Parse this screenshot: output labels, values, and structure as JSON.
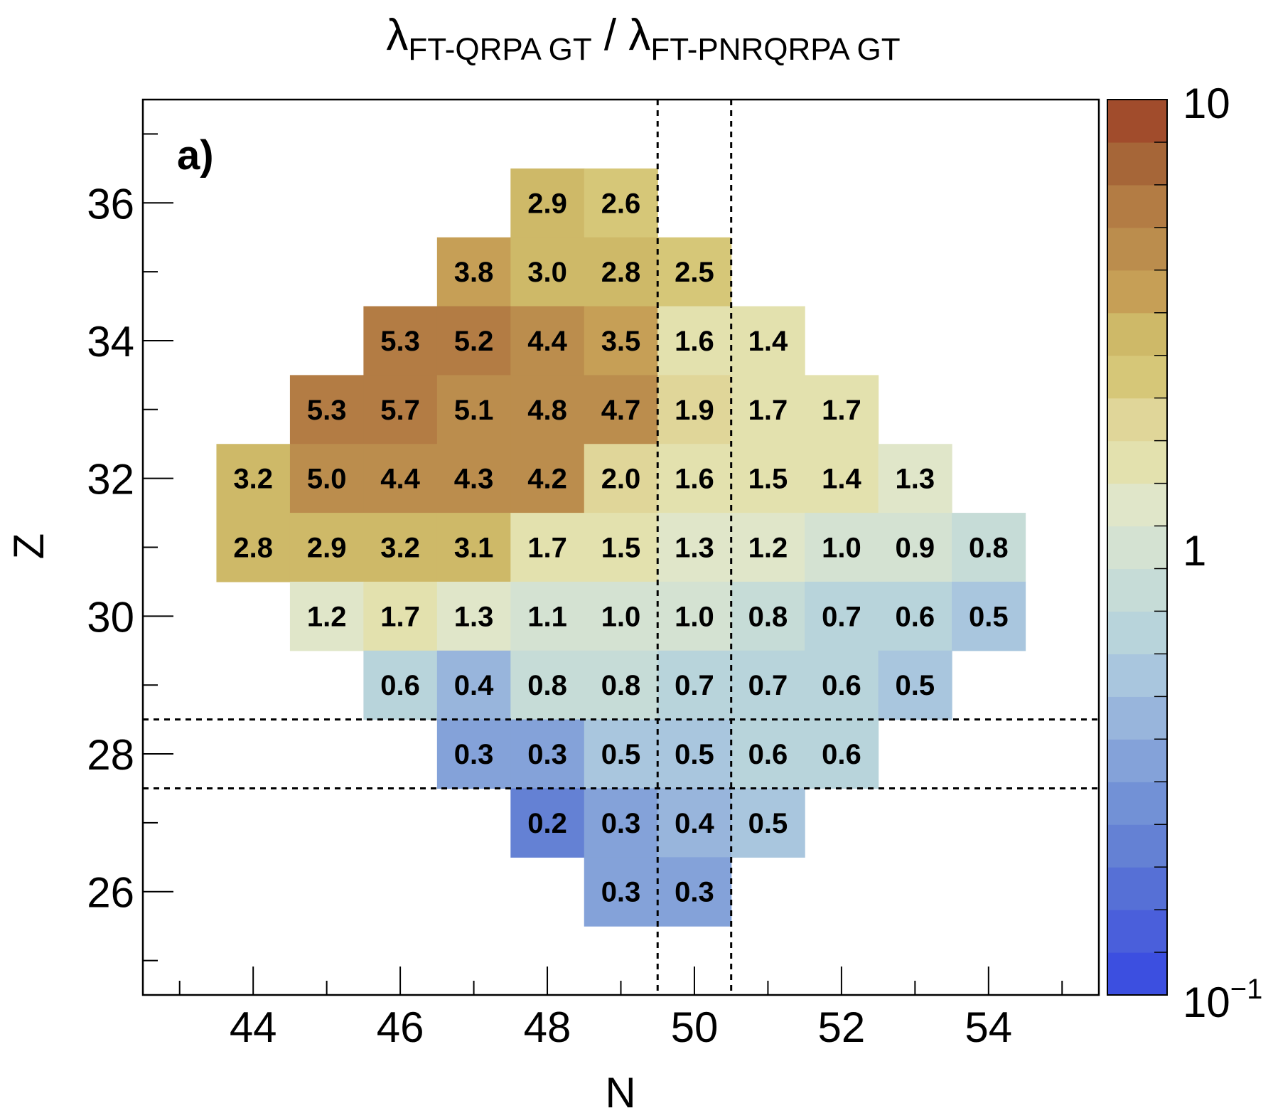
{
  "chart_data": {
    "type": "heatmap",
    "title_main": "λ",
    "title_sub1": "FT-QRPA GT",
    "title_sep": " / ",
    "title_main2": "λ",
    "title_sub2": "FT-PNRQRPA GT",
    "xlabel": "N",
    "ylabel": "Z",
    "panel_label": "a)",
    "xlim": [
      42.5,
      55.5
    ],
    "ylim": [
      24.5,
      37.5
    ],
    "x_ticks": [
      44,
      46,
      48,
      50,
      52,
      54
    ],
    "x_tick_labels": [
      "44",
      "46",
      "48",
      "50",
      "52",
      "54"
    ],
    "y_ticks": [
      26,
      28,
      30,
      32,
      34,
      36
    ],
    "y_tick_labels": [
      "26",
      "28",
      "30",
      "32",
      "34",
      "36"
    ],
    "color_scale": "log",
    "zlim": [
      0.1,
      10
    ],
    "colorbar_labels": {
      "top": "10",
      "mid": "1",
      "bottom_base": "10",
      "bottom_exp": "−1"
    },
    "dashed_lines": {
      "vertical_N": [
        49.5,
        50.5
      ],
      "horizontal_Z": [
        27.5,
        28.5
      ]
    },
    "cells": [
      {
        "N": 48,
        "Z": 36,
        "v": 2.9,
        "label": "2.9"
      },
      {
        "N": 49,
        "Z": 36,
        "v": 2.6,
        "label": "2.6"
      },
      {
        "N": 47,
        "Z": 35,
        "v": 3.8,
        "label": "3.8"
      },
      {
        "N": 48,
        "Z": 35,
        "v": 3.0,
        "label": "3.0"
      },
      {
        "N": 49,
        "Z": 35,
        "v": 2.8,
        "label": "2.8"
      },
      {
        "N": 50,
        "Z": 35,
        "v": 2.5,
        "label": "2.5"
      },
      {
        "N": 46,
        "Z": 34,
        "v": 5.3,
        "label": "5.3"
      },
      {
        "N": 47,
        "Z": 34,
        "v": 5.2,
        "label": "5.2"
      },
      {
        "N": 48,
        "Z": 34,
        "v": 4.4,
        "label": "4.4"
      },
      {
        "N": 49,
        "Z": 34,
        "v": 3.5,
        "label": "3.5"
      },
      {
        "N": 50,
        "Z": 34,
        "v": 1.6,
        "label": "1.6"
      },
      {
        "N": 51,
        "Z": 34,
        "v": 1.4,
        "label": "1.4"
      },
      {
        "N": 45,
        "Z": 33,
        "v": 5.3,
        "label": "5.3"
      },
      {
        "N": 46,
        "Z": 33,
        "v": 5.7,
        "label": "5.7"
      },
      {
        "N": 47,
        "Z": 33,
        "v": 5.1,
        "label": "5.1"
      },
      {
        "N": 48,
        "Z": 33,
        "v": 4.8,
        "label": "4.8"
      },
      {
        "N": 49,
        "Z": 33,
        "v": 4.7,
        "label": "4.7"
      },
      {
        "N": 50,
        "Z": 33,
        "v": 1.9,
        "label": "1.9"
      },
      {
        "N": 51,
        "Z": 33,
        "v": 1.7,
        "label": "1.7"
      },
      {
        "N": 52,
        "Z": 33,
        "v": 1.7,
        "label": "1.7"
      },
      {
        "N": 44,
        "Z": 32,
        "v": 3.2,
        "label": "3.2"
      },
      {
        "N": 45,
        "Z": 32,
        "v": 5.0,
        "label": "5.0"
      },
      {
        "N": 46,
        "Z": 32,
        "v": 4.4,
        "label": "4.4"
      },
      {
        "N": 47,
        "Z": 32,
        "v": 4.3,
        "label": "4.3"
      },
      {
        "N": 48,
        "Z": 32,
        "v": 4.2,
        "label": "4.2"
      },
      {
        "N": 49,
        "Z": 32,
        "v": 2.0,
        "label": "2.0"
      },
      {
        "N": 50,
        "Z": 32,
        "v": 1.6,
        "label": "1.6"
      },
      {
        "N": 51,
        "Z": 32,
        "v": 1.5,
        "label": "1.5"
      },
      {
        "N": 52,
        "Z": 32,
        "v": 1.4,
        "label": "1.4"
      },
      {
        "N": 53,
        "Z": 32,
        "v": 1.3,
        "label": "1.3"
      },
      {
        "N": 44,
        "Z": 31,
        "v": 2.8,
        "label": "2.8"
      },
      {
        "N": 45,
        "Z": 31,
        "v": 2.9,
        "label": "2.9"
      },
      {
        "N": 46,
        "Z": 31,
        "v": 3.2,
        "label": "3.2"
      },
      {
        "N": 47,
        "Z": 31,
        "v": 3.1,
        "label": "3.1"
      },
      {
        "N": 48,
        "Z": 31,
        "v": 1.7,
        "label": "1.7"
      },
      {
        "N": 49,
        "Z": 31,
        "v": 1.5,
        "label": "1.5"
      },
      {
        "N": 50,
        "Z": 31,
        "v": 1.3,
        "label": "1.3"
      },
      {
        "N": 51,
        "Z": 31,
        "v": 1.2,
        "label": "1.2"
      },
      {
        "N": 52,
        "Z": 31,
        "v": 1.0,
        "label": "1.0"
      },
      {
        "N": 53,
        "Z": 31,
        "v": 0.9,
        "label": "0.9"
      },
      {
        "N": 54,
        "Z": 31,
        "v": 0.8,
        "label": "0.8"
      },
      {
        "N": 45,
        "Z": 30,
        "v": 1.2,
        "label": "1.2"
      },
      {
        "N": 46,
        "Z": 30,
        "v": 1.7,
        "label": "1.7"
      },
      {
        "N": 47,
        "Z": 30,
        "v": 1.3,
        "label": "1.3"
      },
      {
        "N": 48,
        "Z": 30,
        "v": 1.1,
        "label": "1.1"
      },
      {
        "N": 49,
        "Z": 30,
        "v": 1.0,
        "label": "1.0"
      },
      {
        "N": 50,
        "Z": 30,
        "v": 1.0,
        "label": "1.0"
      },
      {
        "N": 51,
        "Z": 30,
        "v": 0.8,
        "label": "0.8"
      },
      {
        "N": 52,
        "Z": 30,
        "v": 0.7,
        "label": "0.7"
      },
      {
        "N": 53,
        "Z": 30,
        "v": 0.6,
        "label": "0.6"
      },
      {
        "N": 54,
        "Z": 30,
        "v": 0.5,
        "label": "0.5"
      },
      {
        "N": 46,
        "Z": 29,
        "v": 0.6,
        "label": "0.6"
      },
      {
        "N": 47,
        "Z": 29,
        "v": 0.4,
        "label": "0.4"
      },
      {
        "N": 48,
        "Z": 29,
        "v": 0.8,
        "label": "0.8"
      },
      {
        "N": 49,
        "Z": 29,
        "v": 0.8,
        "label": "0.8"
      },
      {
        "N": 50,
        "Z": 29,
        "v": 0.7,
        "label": "0.7"
      },
      {
        "N": 51,
        "Z": 29,
        "v": 0.7,
        "label": "0.7"
      },
      {
        "N": 52,
        "Z": 29,
        "v": 0.6,
        "label": "0.6"
      },
      {
        "N": 53,
        "Z": 29,
        "v": 0.5,
        "label": "0.5"
      },
      {
        "N": 47,
        "Z": 28,
        "v": 0.3,
        "label": "0.3"
      },
      {
        "N": 48,
        "Z": 28,
        "v": 0.3,
        "label": "0.3"
      },
      {
        "N": 49,
        "Z": 28,
        "v": 0.5,
        "label": "0.5"
      },
      {
        "N": 50,
        "Z": 28,
        "v": 0.5,
        "label": "0.5"
      },
      {
        "N": 51,
        "Z": 28,
        "v": 0.6,
        "label": "0.6"
      },
      {
        "N": 52,
        "Z": 28,
        "v": 0.6,
        "label": "0.6"
      },
      {
        "N": 48,
        "Z": 27,
        "v": 0.2,
        "label": "0.2"
      },
      {
        "N": 49,
        "Z": 27,
        "v": 0.3,
        "label": "0.3"
      },
      {
        "N": 50,
        "Z": 27,
        "v": 0.4,
        "label": "0.4"
      },
      {
        "N": 51,
        "Z": 27,
        "v": 0.5,
        "label": "0.5"
      },
      {
        "N": 49,
        "Z": 26,
        "v": 0.3,
        "label": "0.3"
      },
      {
        "N": 50,
        "Z": 26,
        "v": 0.3,
        "label": "0.3"
      }
    ]
  },
  "colors": {
    "palette": [
      "#3c4fe0",
      "#4a5fdb",
      "#5670d6",
      "#6481d4",
      "#7291d6",
      "#84a2d9",
      "#98b5dc",
      "#a9c6de",
      "#b8d4db",
      "#c6dcd7",
      "#d4e2d2",
      "#e0e6c9",
      "#e3e1ae",
      "#e0d699",
      "#d6c778",
      "#ceb968",
      "#c69f56",
      "#bb8d4d",
      "#b37c44",
      "#a66638",
      "#a14c2c"
    ]
  }
}
